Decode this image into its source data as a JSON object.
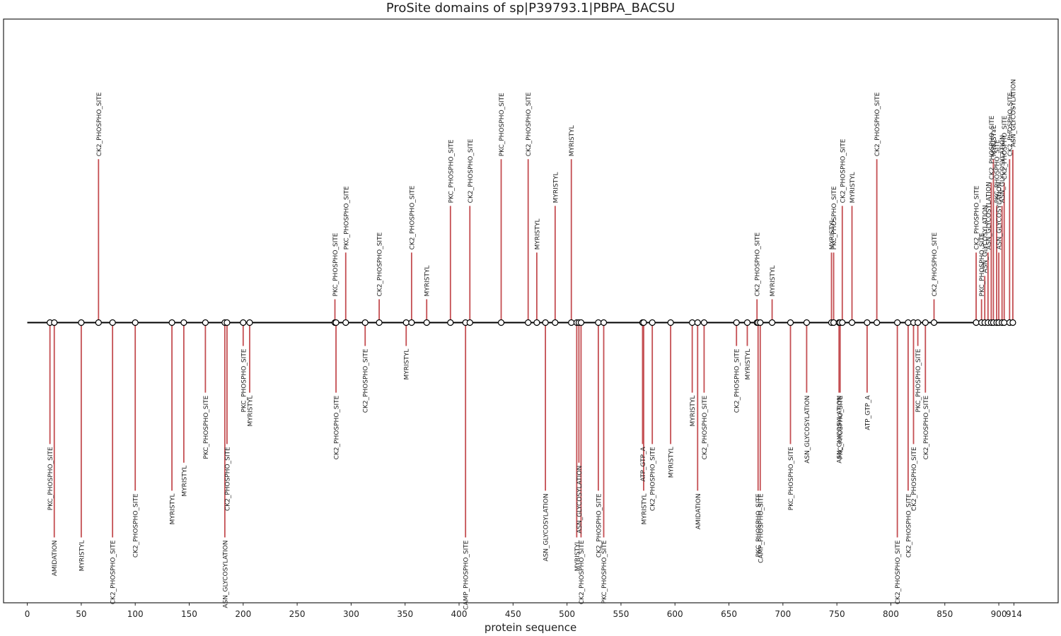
{
  "chart_data": {
    "type": "lollipop",
    "title": "ProSite domains of sp|P39793.1|PBPA_BACSU",
    "xlabel": "protein sequence",
    "ylabel": "",
    "xlim": [
      -22,
      955
    ],
    "ylim": [
      -6,
      6.5
    ],
    "grid": false,
    "sequence_length": 914,
    "x_ticks": [
      0,
      50,
      100,
      150,
      200,
      250,
      300,
      350,
      400,
      450,
      500,
      550,
      600,
      650,
      700,
      750,
      800,
      850,
      900,
      914
    ],
    "sites": [
      {
        "x": 21,
        "y": -2.6,
        "label": "PKC_PHOSPHO_SITE"
      },
      {
        "x": 25,
        "y": -4.6,
        "label": "AMIDATION"
      },
      {
        "x": 50,
        "y": -4.6,
        "label": "MYRISTYL"
      },
      {
        "x": 66,
        "y": 3.5,
        "label": "CK2_PHOSPHO_SITE"
      },
      {
        "x": 79,
        "y": -4.6,
        "label": "CK2_PHOSPHO_SITE"
      },
      {
        "x": 100,
        "y": -3.6,
        "label": "CK2_PHOSPHO_SITE"
      },
      {
        "x": 134,
        "y": -3.6,
        "label": "MYRISTYL"
      },
      {
        "x": 145,
        "y": -3.0,
        "label": "MYRISTYL"
      },
      {
        "x": 165,
        "y": -1.5,
        "label": "PKC_PHOSPHO_SITE"
      },
      {
        "x": 183,
        "y": -4.6,
        "label": "ASN_GLYCOSYLATION"
      },
      {
        "x": 185,
        "y": -2.6,
        "label": "CK2_PHOSPHO_SITE"
      },
      {
        "x": 200,
        "y": -0.5,
        "label": "PKC_PHOSPHO_SITE"
      },
      {
        "x": 206,
        "y": -1.5,
        "label": "MYRISTYL"
      },
      {
        "x": 285,
        "y": 0.5,
        "label": "PKC_PHOSPHO_SITE"
      },
      {
        "x": 286,
        "y": -1.5,
        "label": "CK2_PHOSPHO_SITE"
      },
      {
        "x": 295,
        "y": 1.5,
        "label": "PKC_PHOSPHO_SITE"
      },
      {
        "x": 313,
        "y": -0.5,
        "label": "CK2_PHOSPHO_SITE"
      },
      {
        "x": 326,
        "y": 0.5,
        "label": "CK2_PHOSPHO_SITE"
      },
      {
        "x": 351,
        "y": -0.5,
        "label": "MYRISTYL"
      },
      {
        "x": 356,
        "y": 1.5,
        "label": "CK2_PHOSPHO_SITE"
      },
      {
        "x": 370,
        "y": 0.5,
        "label": "MYRISTYL"
      },
      {
        "x": 392,
        "y": 2.5,
        "label": "PKC_PHOSPHO_SITE"
      },
      {
        "x": 406,
        "y": -4.6,
        "label": "CAMP_PHOSPHO_SITE"
      },
      {
        "x": 410,
        "y": 2.5,
        "label": "CK2_PHOSPHO_SITE"
      },
      {
        "x": 439,
        "y": 3.5,
        "label": "PKC_PHOSPHO_SITE"
      },
      {
        "x": 464,
        "y": 3.5,
        "label": "CK2_PHOSPHO_SITE"
      },
      {
        "x": 472,
        "y": 1.5,
        "label": "MYRISTYL"
      },
      {
        "x": 480,
        "y": -3.6,
        "label": "ASN_GLYCOSYLATION"
      },
      {
        "x": 489,
        "y": 2.5,
        "label": "MYRISTYL"
      },
      {
        "x": 504,
        "y": 3.5,
        "label": "MYRISTYL"
      },
      {
        "x": 509,
        "y": -4.6,
        "label": "MYRISTYL"
      },
      {
        "x": 511,
        "y": -3.0,
        "label": "ASN_GLYCOSYLATION"
      },
      {
        "x": 513,
        "y": -4.6,
        "label": "CK2_PHOSPHO_SITE"
      },
      {
        "x": 529,
        "y": -3.6,
        "label": "CK2_PHOSPHO_SITE"
      },
      {
        "x": 534,
        "y": -4.6,
        "label": "PKC_PHOSPHO_SITE"
      },
      {
        "x": 570,
        "y": -2.6,
        "label": "ATP_GTP_A"
      },
      {
        "x": 571,
        "y": -3.6,
        "label": "MYRISTYL"
      },
      {
        "x": 579,
        "y": -2.6,
        "label": "CK2_PHOSPHO_SITE"
      },
      {
        "x": 596,
        "y": -2.6,
        "label": "MYRISTYL"
      },
      {
        "x": 616,
        "y": -1.5,
        "label": "MYRISTYL"
      },
      {
        "x": 621,
        "y": -3.6,
        "label": "AMIDATION"
      },
      {
        "x": 627,
        "y": -1.5,
        "label": "CK2_PHOSPHO_SITE"
      },
      {
        "x": 657,
        "y": -0.5,
        "label": "CK2_PHOSPHO_SITE"
      },
      {
        "x": 667,
        "y": -0.5,
        "label": "MYRISTYL"
      },
      {
        "x": 676,
        "y": 0.5,
        "label": "CK2_PHOSPHO_SITE"
      },
      {
        "x": 677,
        "y": -3.6,
        "label": "PKC_PHOSPHO_SITE"
      },
      {
        "x": 679,
        "y": -3.6,
        "label": "CAMP_PHOSPHO_SITE"
      },
      {
        "x": 690,
        "y": 0.5,
        "label": "MYRISTYL"
      },
      {
        "x": 707,
        "y": -2.6,
        "label": "PKC_PHOSPHO_SITE"
      },
      {
        "x": 722,
        "y": -1.5,
        "label": "ASN_GLYCOSYLATION"
      },
      {
        "x": 745,
        "y": 1.5,
        "label": "MYRISTYL"
      },
      {
        "x": 747,
        "y": 1.5,
        "label": "PKC_PHOSPHO_SITE"
      },
      {
        "x": 752,
        "y": -1.5,
        "label": "ASN_GLYCOSYLATION"
      },
      {
        "x": 753,
        "y": -1.5,
        "label": "PKC_PHOSPHO_SITE"
      },
      {
        "x": 755,
        "y": 2.5,
        "label": "CK2_PHOSPHO_SITE"
      },
      {
        "x": 764,
        "y": 2.5,
        "label": "MYRISTYL"
      },
      {
        "x": 778,
        "y": -1.5,
        "label": "ATP_GTP_A"
      },
      {
        "x": 787,
        "y": 3.5,
        "label": "CK2_PHOSPHO_SITE"
      },
      {
        "x": 806,
        "y": -4.6,
        "label": "CK2_PHOSPHO_SITE"
      },
      {
        "x": 816,
        "y": -3.6,
        "label": "CK2_PHOSPHO_SITE"
      },
      {
        "x": 821,
        "y": -2.6,
        "label": "CK2_PHOSPHO_SITE"
      },
      {
        "x": 825,
        "y": -0.5,
        "label": "PKC_PHOSPHO_SITE"
      },
      {
        "x": 832,
        "y": -1.5,
        "label": "CK2_PHOSPHO_SITE"
      },
      {
        "x": 840,
        "y": 0.5,
        "label": "CK2_PHOSPHO_SITE"
      },
      {
        "x": 879,
        "y": 1.5,
        "label": "CK2_PHOSPHO_SITE"
      },
      {
        "x": 884,
        "y": 0.5,
        "label": "PKC_PHOSPHO_SITE"
      },
      {
        "x": 887,
        "y": 1.0,
        "label": "ASN_GLYCOSYLATION"
      },
      {
        "x": 890,
        "y": 1.5,
        "label": "ASN_GLYCOSYLATION"
      },
      {
        "x": 893,
        "y": 3.0,
        "label": "CK2_PHOSPHO_SITE"
      },
      {
        "x": 895,
        "y": 3.5,
        "label": "MYRISTYL"
      },
      {
        "x": 898,
        "y": 2.5,
        "label": "PKC_PHOSPHO_SITE"
      },
      {
        "x": 900,
        "y": 1.5,
        "label": "ASN_GLYCOSYLATION"
      },
      {
        "x": 903,
        "y": 2.5,
        "label": "ASN_GLYCOSYLATION"
      },
      {
        "x": 905,
        "y": 3.0,
        "label": "CK2_PHOSPHO_SITE"
      },
      {
        "x": 910,
        "y": 3.5,
        "label": "CK2_PHOSPHO_SITE"
      },
      {
        "x": 913,
        "y": 3.7,
        "label": "ASN_GLYCOSYLATION"
      }
    ]
  }
}
